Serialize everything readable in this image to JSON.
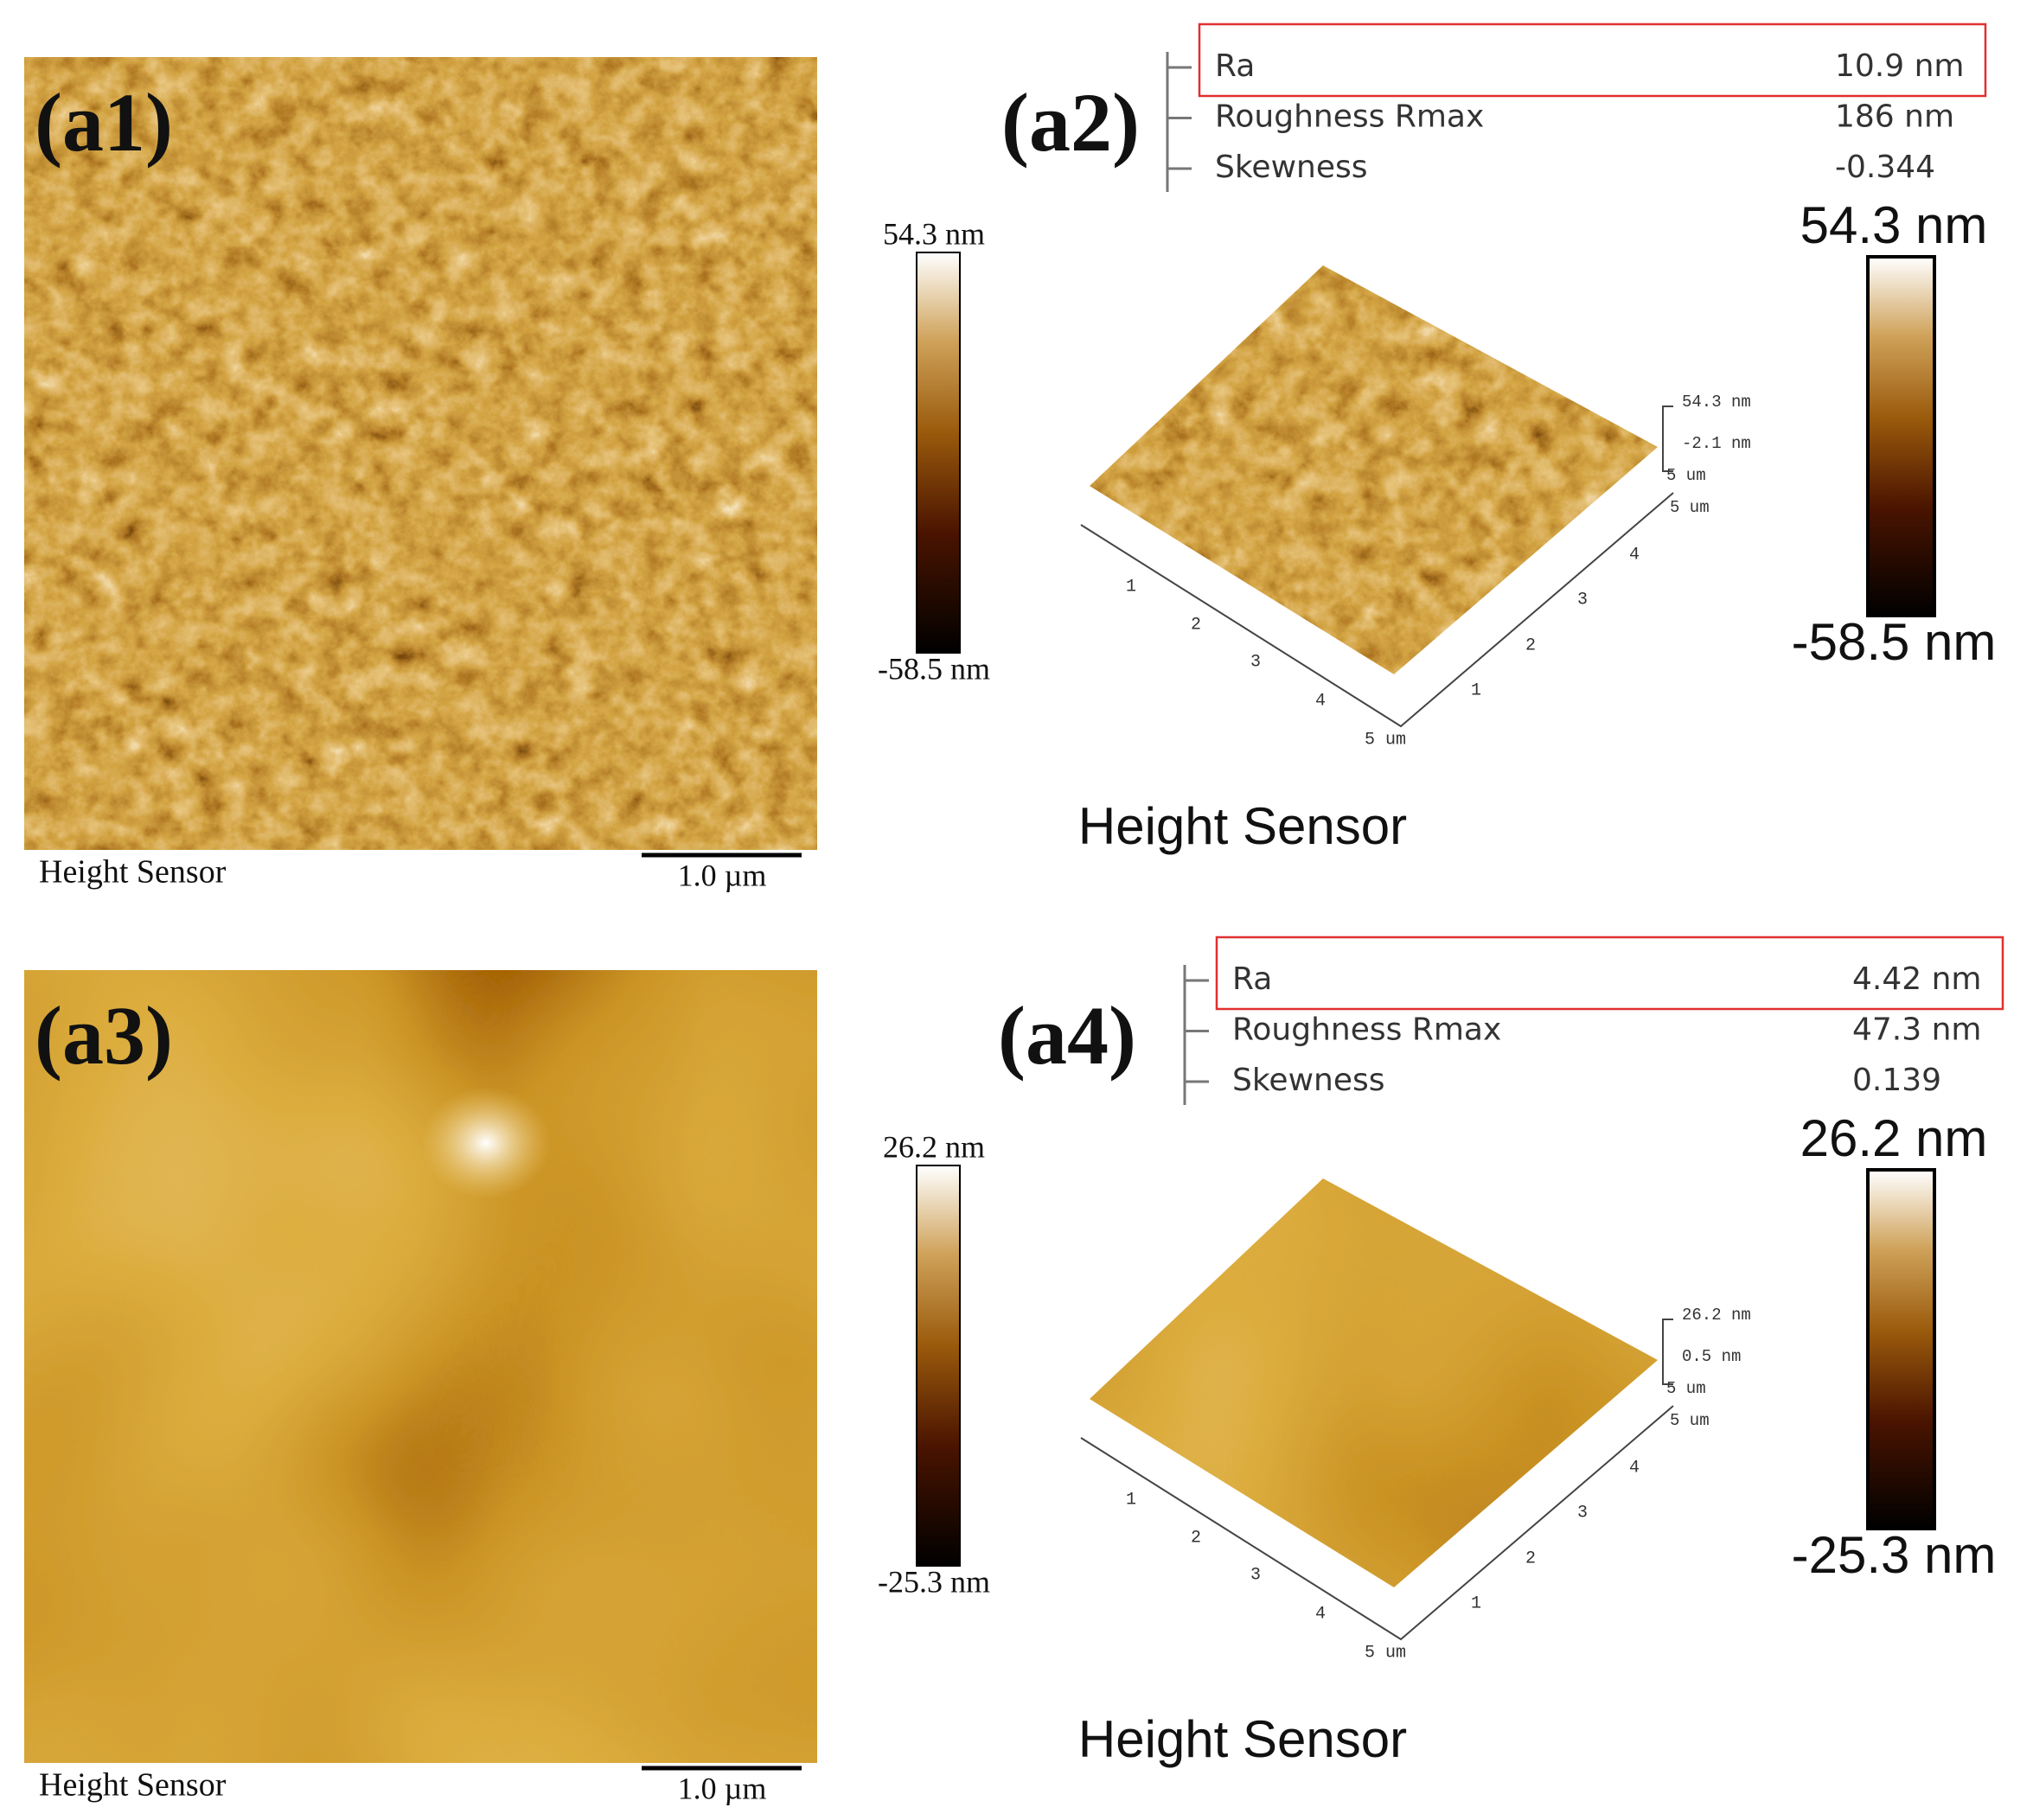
{
  "panels": [
    {
      "label": "(a1)",
      "caption": "Height Sensor",
      "scale_bar": "1.0 µm",
      "colorbar": {
        "max": "54.3 nm",
        "min": "-58.5 nm"
      }
    },
    {
      "label": "(a2)",
      "stats": [
        {
          "name": "Ra",
          "value": "10.9 nm"
        },
        {
          "name": "Roughness Rmax",
          "value": "186 nm"
        },
        {
          "name": "Skewness",
          "value": "-0.344"
        }
      ],
      "z_axis": [
        "54.3 nm",
        "-2.1 nm",
        "5 um",
        "5 um"
      ],
      "x_axis": [
        "1",
        "2",
        "3",
        "4",
        "5 um"
      ],
      "y_axis": [
        "1",
        "2",
        "3",
        "4"
      ],
      "colorbar": {
        "max": "54.3 nm",
        "min": "-58.5 nm"
      },
      "caption": "Height Sensor"
    },
    {
      "label": "(a3)",
      "caption": "Height Sensor",
      "scale_bar": "1.0 µm",
      "colorbar": {
        "max": "26.2 nm",
        "min": "-25.3 nm"
      }
    },
    {
      "label": "(a4)",
      "stats": [
        {
          "name": "Ra",
          "value": "4.42 nm"
        },
        {
          "name": "Roughness Rmax",
          "value": "47.3 nm"
        },
        {
          "name": "Skewness",
          "value": "0.139"
        }
      ],
      "z_axis": [
        "26.2 nm",
        "0.5 nm",
        "5 um",
        "5 um"
      ],
      "x_axis": [
        "1",
        "2",
        "3",
        "4",
        "5 um"
      ],
      "y_axis": [
        "1",
        "2",
        "3",
        "4"
      ],
      "colorbar": {
        "max": "26.2 nm",
        "min": "-25.3 nm"
      },
      "caption": "Height Sensor"
    }
  ]
}
